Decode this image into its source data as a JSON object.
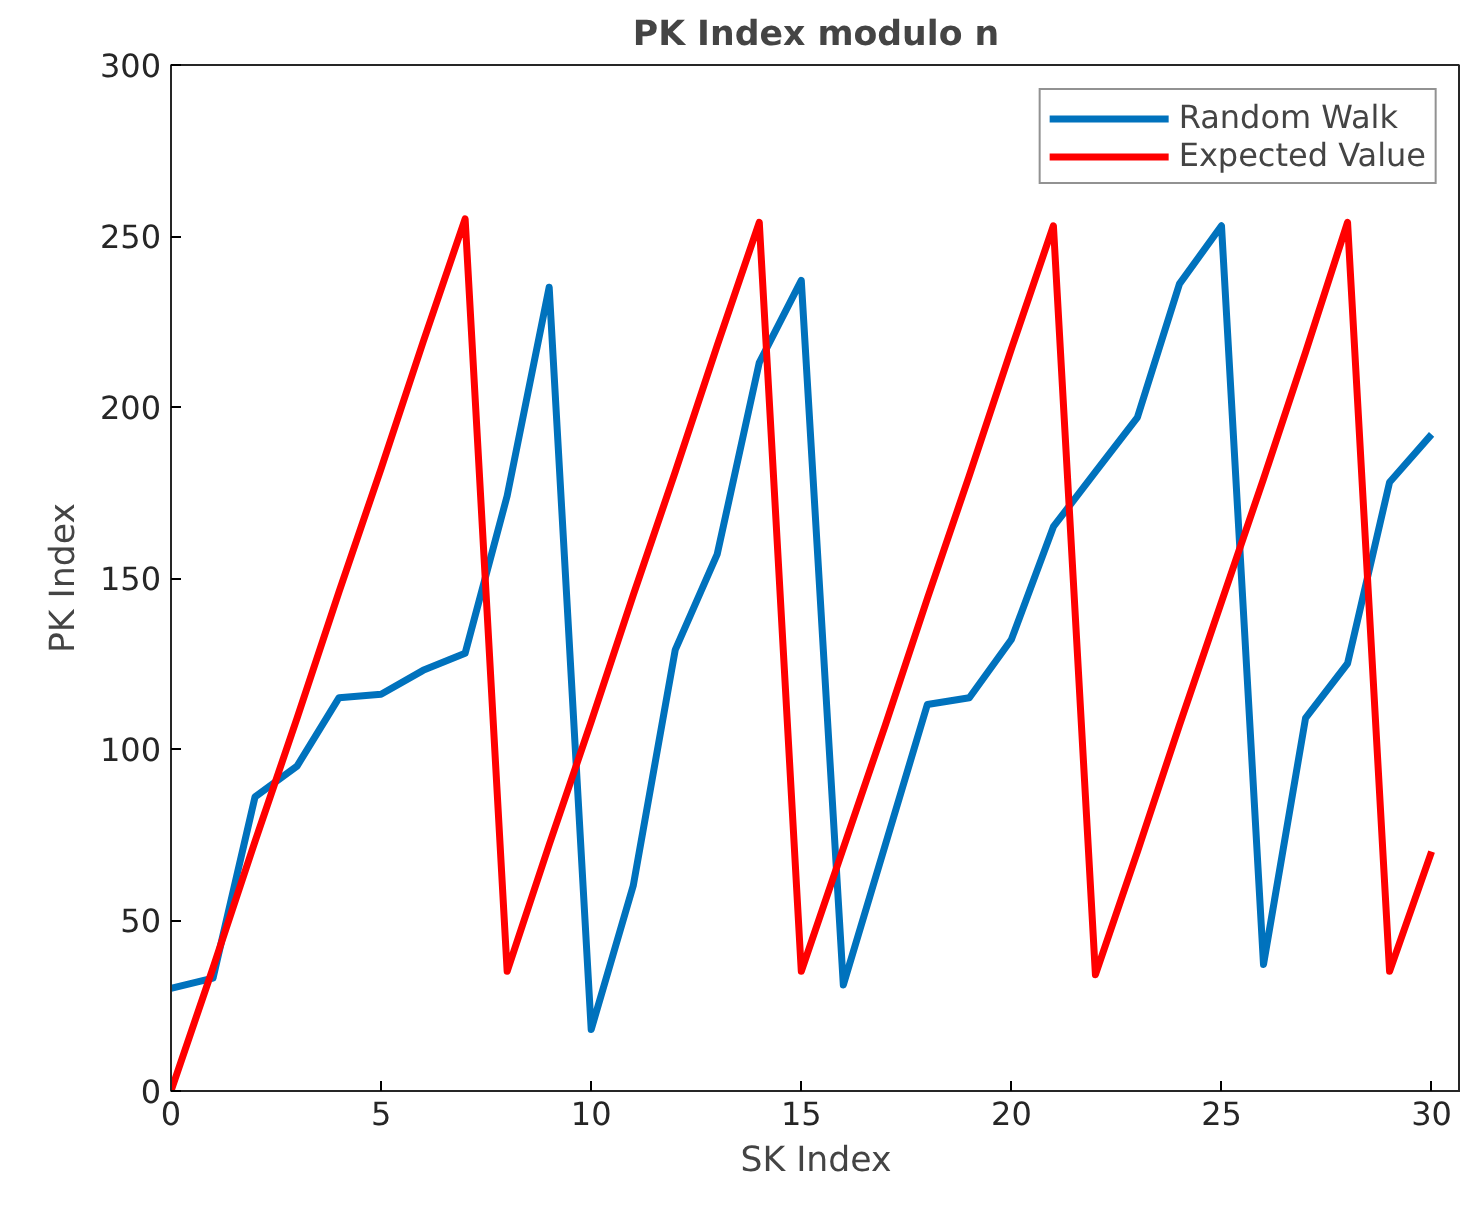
{
  "chart_data": {
    "type": "line",
    "title": "PK Index modulo n",
    "xlabel": "SK Index",
    "ylabel": "PK Index",
    "xlim": [
      0,
      30.7
    ],
    "xticks": [
      0,
      5,
      10,
      15,
      20,
      25,
      30
    ],
    "ylim": [
      0,
      300
    ],
    "yticks": [
      0,
      50,
      100,
      150,
      200,
      250,
      300
    ],
    "grid": false,
    "legend": "top right",
    "marker": "none",
    "line_style": "solid",
    "x": [
      0,
      1,
      2,
      3,
      4,
      5,
      6,
      7,
      8,
      9,
      10,
      11,
      12,
      13,
      14,
      15,
      16,
      17,
      18,
      19,
      20,
      21,
      22,
      23,
      24,
      25,
      26,
      27,
      28,
      29,
      30
    ],
    "series": [
      {
        "name": "Random Walk",
        "color": "#0072bd",
        "values": [
          30,
          33,
          86,
          95,
          115,
          116,
          123,
          128,
          174,
          235,
          18,
          60,
          129,
          157,
          213,
          237,
          31,
          72,
          113,
          115,
          132,
          165,
          181,
          197,
          236,
          253,
          37,
          109,
          125,
          178,
          192
        ]
      },
      {
        "name": "Expected Value",
        "color": "#ff0000",
        "values": [
          0,
          36,
          73,
          109,
          146,
          182,
          219,
          255,
          35,
          72,
          108,
          145,
          181,
          218,
          254,
          35,
          71,
          107,
          144,
          180,
          217,
          253,
          34,
          70,
          107,
          143,
          179,
          216,
          254,
          35,
          70
        ]
      }
    ]
  }
}
